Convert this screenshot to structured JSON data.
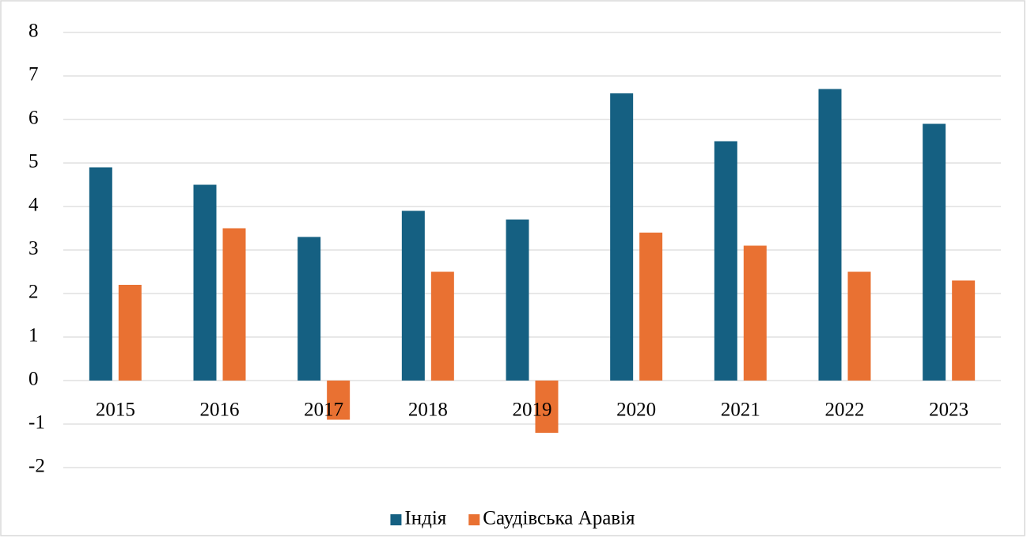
{
  "chart_data": {
    "type": "bar",
    "categories": [
      "2015",
      "2016",
      "2017",
      "2018",
      "2019",
      "2020",
      "2021",
      "2022",
      "2023"
    ],
    "series": [
      {
        "name": "Індія",
        "color": "#156082",
        "values": [
          4.9,
          4.5,
          3.3,
          3.9,
          3.7,
          6.6,
          5.5,
          6.7,
          5.9
        ]
      },
      {
        "name": "Саудівська Аравія",
        "color": "#e97132",
        "values": [
          2.2,
          3.5,
          -0.9,
          2.5,
          -1.2,
          3.4,
          3.1,
          2.5,
          2.3
        ]
      }
    ],
    "ylim": [
      -2,
      8
    ],
    "yticks": [
      -2,
      -1,
      0,
      1,
      2,
      3,
      4,
      5,
      6,
      7,
      8
    ],
    "grid": true,
    "legend": "bottom"
  }
}
